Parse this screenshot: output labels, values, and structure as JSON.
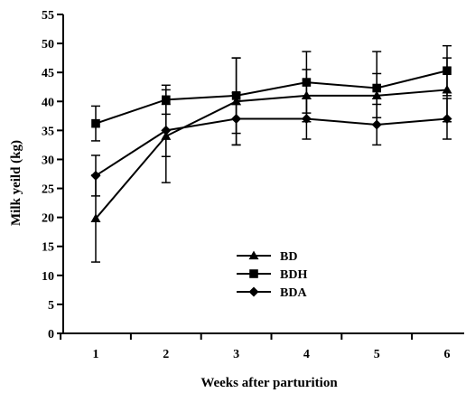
{
  "chart_data": {
    "type": "line",
    "title": "",
    "xlabel": "Weeks after parturition",
    "ylabel": "Milk yeild (kg)",
    "categories": [
      "1",
      "2",
      "3",
      "4",
      "5",
      "6"
    ],
    "x": [
      1,
      2,
      3,
      4,
      5,
      6
    ],
    "ylim": [
      0,
      55
    ],
    "yticks": [
      0,
      5,
      10,
      15,
      20,
      25,
      30,
      35,
      40,
      45,
      50,
      55
    ],
    "grid": false,
    "legend_position": "center-right",
    "series": [
      {
        "name": "BD",
        "marker": "triangle",
        "values": [
          19.8,
          34.0,
          40.0,
          41.0,
          41.0,
          42.0
        ],
        "error": [
          7.5,
          8.0,
          7.5,
          4.5,
          3.8,
          5.5
        ]
      },
      {
        "name": "BDH",
        "marker": "square",
        "values": [
          36.2,
          40.3,
          41.0,
          43.3,
          42.3,
          45.3
        ],
        "error": [
          3.0,
          2.5,
          6.5,
          5.3,
          6.3,
          4.3
        ]
      },
      {
        "name": "BDA",
        "marker": "diamond",
        "values": [
          27.2,
          35.0,
          37.0,
          37.0,
          36.0,
          37.0
        ],
        "error": [
          3.5,
          4.5,
          4.5,
          3.5,
          3.5,
          3.5
        ]
      }
    ],
    "colors": {
      "line": "#000000",
      "background": "#ffffff"
    }
  }
}
